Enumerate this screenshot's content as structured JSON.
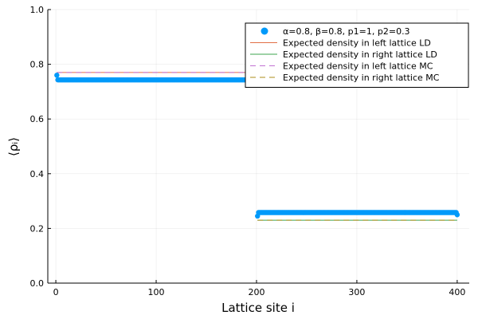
{
  "chart_data": {
    "type": "scatter",
    "xlabel": "Lattice site i",
    "ylabel": "⟨ρᵢ⟩",
    "xlim": [
      -8,
      412
    ],
    "ylim": [
      0,
      1
    ],
    "xticks": [
      0,
      100,
      200,
      300,
      400
    ],
    "yticks": [
      0.0,
      0.2,
      0.4,
      0.6,
      0.8,
      1.0
    ],
    "ytick_labels": [
      "0.0",
      "0.2",
      "0.4",
      "0.6",
      "0.8",
      "1.0"
    ],
    "grid": true,
    "legend_position": "top-right",
    "series": [
      {
        "name": "α=0.8, β=0.8, p1=1, p2=0.3",
        "kind": "scatter",
        "color": "#009AFA",
        "segments": [
          {
            "x_start": 1,
            "x_end": 200,
            "y_first": 0.76,
            "y_plateau": 0.743
          },
          {
            "x_start": 201,
            "x_end": 400,
            "y_first": 0.245,
            "y_plateau": 0.258,
            "y_last": 0.25
          }
        ]
      },
      {
        "name": "Expected density in left lattice LD",
        "kind": "line",
        "style": "solid",
        "color": "#E26F46",
        "x": [
          1,
          200
        ],
        "y": [
          0.77,
          0.77
        ]
      },
      {
        "name": "Expected density in right lattice LD",
        "kind": "line",
        "style": "solid",
        "color": "#3DA44D",
        "x": [
          201,
          400
        ],
        "y": [
          0.23,
          0.23
        ]
      },
      {
        "name": "Expected density in left lattice MC",
        "kind": "line",
        "style": "dashed",
        "color": "#C271D2",
        "x": [
          1,
          200
        ],
        "y": [
          0.77,
          0.77
        ]
      },
      {
        "name": "Expected density in right lattice MC",
        "kind": "line",
        "style": "dashed",
        "color": "#AC8D18",
        "x": [
          201,
          400
        ],
        "y": [
          0.23,
          0.23
        ]
      }
    ]
  }
}
